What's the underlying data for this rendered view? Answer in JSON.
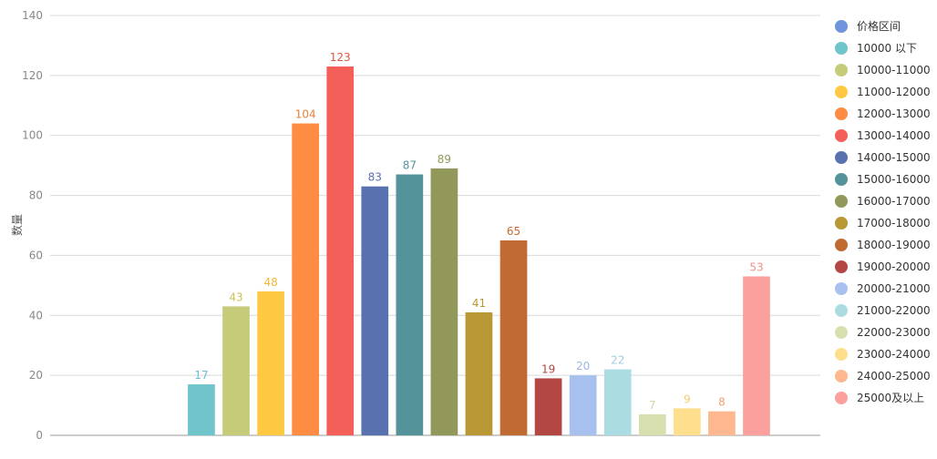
{
  "chart_data": {
    "type": "bar",
    "title": "",
    "xlabel": "",
    "ylabel": "数量",
    "ylim": [
      0,
      140
    ],
    "yticks": [
      0,
      20,
      40,
      60,
      80,
      100,
      120,
      140
    ],
    "grid": true,
    "legend_position": "right",
    "categories": [
      "价格区间",
      "10000 以下",
      "10000-11000",
      "11000-12000",
      "12000-13000",
      "13000-14000",
      "14000-15000",
      "15000-16000",
      "16000-17000",
      "17000-18000",
      "18000-19000",
      "19000-20000",
      "20000-21000",
      "21000-22000",
      "22000-23000",
      "23000-24000",
      "24000-25000",
      "25000及以上"
    ],
    "values": [
      null,
      17,
      43,
      48,
      104,
      123,
      83,
      87,
      89,
      41,
      65,
      19,
      20,
      22,
      7,
      9,
      8,
      53
    ],
    "colors": [
      "#6E94DC",
      "#70C5CA",
      "#C6CB79",
      "#FEC843",
      "#FE8C42",
      "#F46059",
      "#5772AE",
      "#54939A",
      "#92985A",
      "#B99734",
      "#C06B31",
      "#B34744",
      "#A7C0EE",
      "#ABDCE1",
      "#D8DFAE",
      "#FEDF8D",
      "#FEB78E",
      "#FBA09D"
    ],
    "label_colors": [
      "#6E94DC",
      "#6BBFD0",
      "#D1BE55",
      "#F2B838",
      "#E8813A",
      "#E2533F",
      "#5772AE",
      "#54939A",
      "#92985A",
      "#B99734",
      "#C06B31",
      "#B34744",
      "#9DB5E5",
      "#9ECFE0",
      "#D2D7A3",
      "#F3CF6A",
      "#F0A074",
      "#F08E8A"
    ]
  }
}
